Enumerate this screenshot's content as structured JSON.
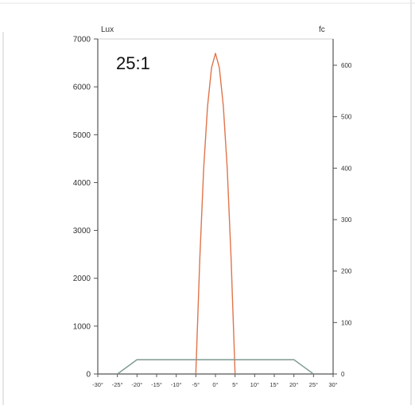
{
  "chart_data": {
    "type": "line",
    "title": "25:1",
    "y_left_unit": "Lux",
    "y_right_unit": "fc",
    "xlim": [
      -30,
      30
    ],
    "ylim_left": [
      0,
      7000
    ],
    "ylim_right": [
      0,
      651
    ],
    "x_ticks": [
      -30,
      -25,
      -20,
      -15,
      -10,
      -5,
      0,
      5,
      10,
      15,
      20,
      25,
      30
    ],
    "x_tick_labels": [
      "-30°",
      "-25°",
      "-20°",
      "-15°",
      "-10°",
      "-5°",
      "0°",
      "5°",
      "10°",
      "15°",
      "20°",
      "25°",
      "30°"
    ],
    "y_left_ticks": [
      0,
      1000,
      2000,
      3000,
      4000,
      5000,
      6000,
      7000
    ],
    "y_left_tick_labels": [
      "0",
      "1000",
      "2000",
      "3000",
      "4000",
      "5000",
      "6000",
      "7000"
    ],
    "y_right_ticks": [
      0,
      100,
      200,
      300,
      400,
      500,
      600
    ],
    "y_right_tick_labels": [
      "0",
      "100",
      "200",
      "300",
      "400",
      "500",
      "600"
    ],
    "grid": false,
    "colors": {
      "series_peak": "#e0744a",
      "series_flat": "#7f9a94",
      "axis": "#555555",
      "border": "#cccccc"
    },
    "series": [
      {
        "color": "#e0744a",
        "x": [
          -5,
          -4,
          -3,
          -2,
          -1,
          0,
          1,
          2,
          3,
          4,
          5
        ],
        "y": [
          0,
          2400,
          4300,
          5600,
          6400,
          6700,
          6400,
          5600,
          4300,
          2400,
          0
        ]
      },
      {
        "color": "#7f9a94",
        "x": [
          -25,
          -20,
          20,
          25
        ],
        "y": [
          0,
          300,
          300,
          0
        ]
      }
    ]
  }
}
